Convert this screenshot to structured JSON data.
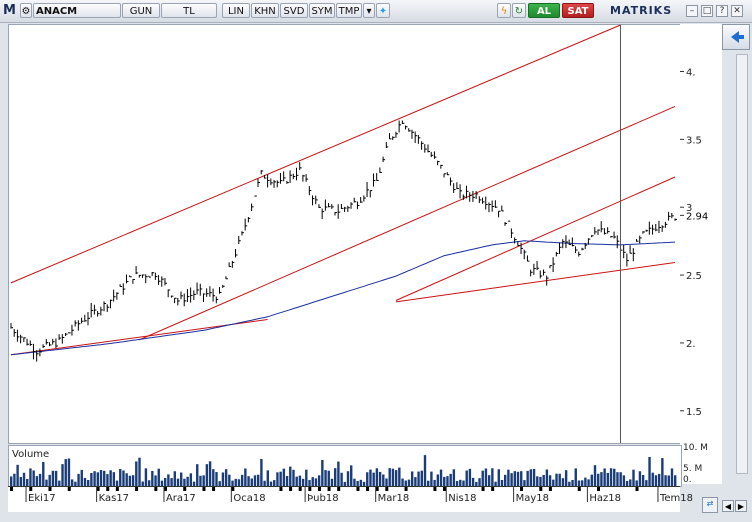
{
  "toolbar": {
    "logo": "M",
    "symbol": "ANACM",
    "buttons": [
      "GUN",
      "TL",
      "LIN",
      "KHN",
      "SVD",
      "SYM",
      "TMP"
    ],
    "buy": "AL",
    "sell": "SAT",
    "brand": "MATRIKS"
  },
  "colors": {
    "price": "#000000",
    "trend": "#cc1111",
    "ma": "#1a2fa0",
    "volume": "#1a3d7a",
    "cursor": "#555555"
  },
  "chart_data": {
    "type": "line",
    "title": "",
    "last_value": 2.94,
    "y_ticks": [
      "1.5",
      "2.",
      "2.5",
      "3",
      "3.5",
      "4."
    ],
    "y_tick_values": [
      1.5,
      2.0,
      2.5,
      3.0,
      3.5,
      4.0
    ],
    "ylim": [
      1.27,
      4.35
    ],
    "x_labels": [
      "Eki17",
      "Kas17",
      "Ara17",
      "Oca18",
      "Þub18",
      "Mar18",
      "Nis18",
      "May18",
      "Haz18",
      "Tem18"
    ],
    "x_label_index": [
      5,
      27,
      48,
      69,
      92,
      114,
      136,
      157,
      180,
      202
    ],
    "x_count": 208,
    "price_keypoints": [
      [
        0,
        2.12
      ],
      [
        8,
        1.95
      ],
      [
        15,
        2.02
      ],
      [
        22,
        2.17
      ],
      [
        30,
        2.3
      ],
      [
        38,
        2.5
      ],
      [
        45,
        2.52
      ],
      [
        52,
        2.32
      ],
      [
        58,
        2.38
      ],
      [
        65,
        2.35
      ],
      [
        72,
        2.8
      ],
      [
        78,
        3.25
      ],
      [
        84,
        3.18
      ],
      [
        90,
        3.28
      ],
      [
        96,
        3.0
      ],
      [
        102,
        2.98
      ],
      [
        108,
        3.05
      ],
      [
        114,
        3.2
      ],
      [
        118,
        3.5
      ],
      [
        122,
        3.65
      ],
      [
        128,
        3.48
      ],
      [
        134,
        3.3
      ],
      [
        140,
        3.1
      ],
      [
        145,
        3.1
      ],
      [
        152,
        3.0
      ],
      [
        158,
        2.75
      ],
      [
        162,
        2.55
      ],
      [
        167,
        2.5
      ],
      [
        172,
        2.75
      ],
      [
        177,
        2.68
      ],
      [
        182,
        2.85
      ],
      [
        188,
        2.78
      ],
      [
        192,
        2.62
      ],
      [
        197,
        2.8
      ],
      [
        202,
        2.88
      ],
      [
        207,
        2.94
      ]
    ],
    "ma_keypoints": [
      [
        0,
        1.92
      ],
      [
        30,
        2.0
      ],
      [
        60,
        2.1
      ],
      [
        80,
        2.2
      ],
      [
        100,
        2.35
      ],
      [
        120,
        2.5
      ],
      [
        135,
        2.65
      ],
      [
        150,
        2.73
      ],
      [
        160,
        2.76
      ],
      [
        175,
        2.74
      ],
      [
        190,
        2.73
      ],
      [
        207,
        2.75
      ]
    ],
    "trend_lines": [
      {
        "from": [
          0,
          2.45
        ],
        "to": [
          190,
          4.35
        ]
      },
      {
        "from": [
          40,
          2.03
        ],
        "to": [
          207,
          3.75
        ]
      },
      {
        "from": [
          120,
          2.32
        ],
        "to": [
          207,
          3.23
        ]
      },
      {
        "from": [
          0,
          1.92
        ],
        "to": [
          80,
          2.18
        ]
      },
      {
        "from": [
          120,
          2.31
        ],
        "to": [
          207,
          2.6
        ]
      }
    ],
    "cursor_index": 190,
    "volume_label": "Volume",
    "volume_ticks": [
      "10. M",
      "5. M",
      "0."
    ],
    "volume_max": 10
  }
}
